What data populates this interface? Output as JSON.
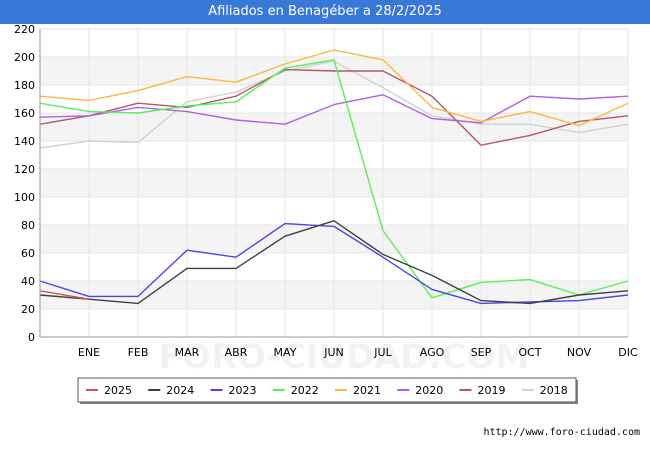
{
  "page": {
    "title": "Afiliados en Benagéber a 28/2/2025",
    "footer_url": "http://www.foro-ciudad.com",
    "watermark": "FORO-CIUDAD.COM"
  },
  "chart_data": {
    "type": "line",
    "title": "Afiliados en Benagéber a 28/2/2025",
    "xlabel": "",
    "ylabel": "",
    "categories": [
      "",
      "ENE",
      "FEB",
      "MAR",
      "ABR",
      "MAY",
      "JUN",
      "JUL",
      "AGO",
      "SEP",
      "OCT",
      "NOV",
      "DIC"
    ],
    "ylim": [
      0,
      220
    ],
    "yticks": [
      0,
      20,
      40,
      60,
      80,
      100,
      120,
      140,
      160,
      180,
      200,
      220
    ],
    "grid": "horizontal bands",
    "legend_position": "bottom",
    "series": [
      {
        "name": "2018",
        "color": "#d0d0d0",
        "values": [
          135,
          140,
          139,
          168,
          175,
          190,
          197,
          178,
          158,
          152,
          152,
          146,
          152
        ]
      },
      {
        "name": "2019",
        "color": "#b05870",
        "values": [
          152,
          158,
          167,
          164,
          172,
          191,
          190,
          190,
          172,
          137,
          144,
          154,
          158
        ]
      },
      {
        "name": "2020",
        "color": "#b060e0",
        "values": [
          157,
          158,
          164,
          161,
          155,
          152,
          166,
          173,
          156,
          153,
          172,
          170,
          172
        ]
      },
      {
        "name": "2021",
        "color": "#f8b840",
        "values": [
          172,
          169,
          176,
          186,
          182,
          195,
          205,
          198,
          164,
          154,
          161,
          151,
          167
        ]
      },
      {
        "name": "2022",
        "color": "#58f058",
        "values": [
          167,
          161,
          160,
          165,
          168,
          192,
          198,
          76,
          28,
          39,
          41,
          30,
          40
        ]
      },
      {
        "name": "2023",
        "color": "#4848e0",
        "values": [
          40,
          29,
          29,
          62,
          57,
          81,
          79,
          57,
          34,
          24,
          25,
          26,
          30
        ]
      },
      {
        "name": "2024",
        "color": "#404040",
        "values": [
          30,
          27,
          24,
          49,
          49,
          72,
          83,
          59,
          44,
          26,
          24,
          30,
          33
        ]
      },
      {
        "name": "2025",
        "color": "#e05050",
        "values": [
          33,
          27,
          null,
          null,
          null,
          null,
          null,
          null,
          null,
          null,
          null,
          null,
          null
        ]
      }
    ],
    "legend_order": [
      "2025",
      "2024",
      "2023",
      "2022",
      "2021",
      "2020",
      "2019",
      "2018"
    ]
  }
}
